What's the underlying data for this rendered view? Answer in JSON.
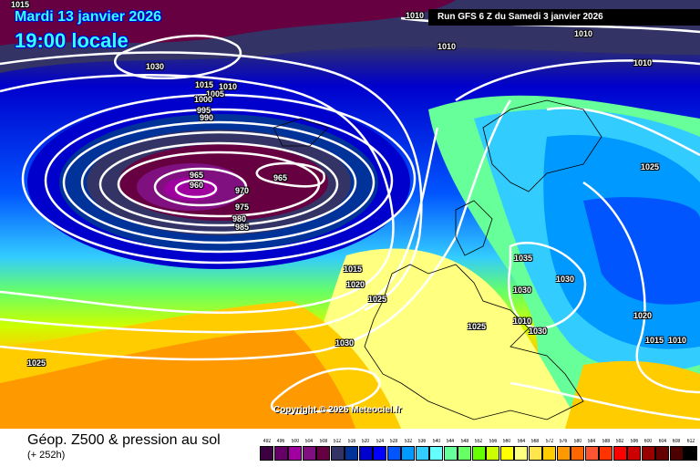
{
  "header": {
    "date": "Mardi 13 janvier 2026",
    "time": "19:00 locale",
    "run": "Run GFS 6 Z du Samedi 3 janvier 2026"
  },
  "copyright": "Copyright © 2026 Meteociel.fr",
  "footer": {
    "title": "Géop. Z500 & pression au sol",
    "lead": "(+ 252h)"
  },
  "isobar_labels": [
    "1015",
    "1010",
    "1010",
    "1010",
    "1010",
    "1030",
    "1015",
    "1010",
    "1005",
    "1000",
    "995",
    "990",
    "965",
    "960",
    "965",
    "970",
    "975",
    "980",
    "985",
    "1025",
    "1035",
    "1030",
    "1030",
    "1015",
    "1020",
    "1025",
    "1025",
    "1010",
    "1030",
    "1020",
    "1015",
    "1010",
    "1030",
    "1025"
  ],
  "legend": {
    "values": [
      "492",
      "496",
      "500",
      "504",
      "508",
      "512",
      "516",
      "520",
      "524",
      "528",
      "532",
      "536",
      "540",
      "544",
      "548",
      "552",
      "556",
      "560",
      "564",
      "568",
      "572",
      "576",
      "580",
      "584",
      "588",
      "592",
      "596",
      "600",
      "604",
      "608",
      "612"
    ],
    "colors": [
      "#3d0040",
      "#660066",
      "#a000a0",
      "#801080",
      "#660040",
      "#333366",
      "#003399",
      "#0000cc",
      "#0000ff",
      "#0055ff",
      "#0099ff",
      "#33ccff",
      "#66ffff",
      "#66ff99",
      "#66ff66",
      "#66ff00",
      "#ccff00",
      "#ffff00",
      "#ffff80",
      "#ffe64d",
      "#ffcc00",
      "#ff9900",
      "#ff6600",
      "#ff5533",
      "#ff3300",
      "#ff0000",
      "#cc0000",
      "#990000",
      "#660000",
      "#4d0000",
      "#000000"
    ]
  }
}
